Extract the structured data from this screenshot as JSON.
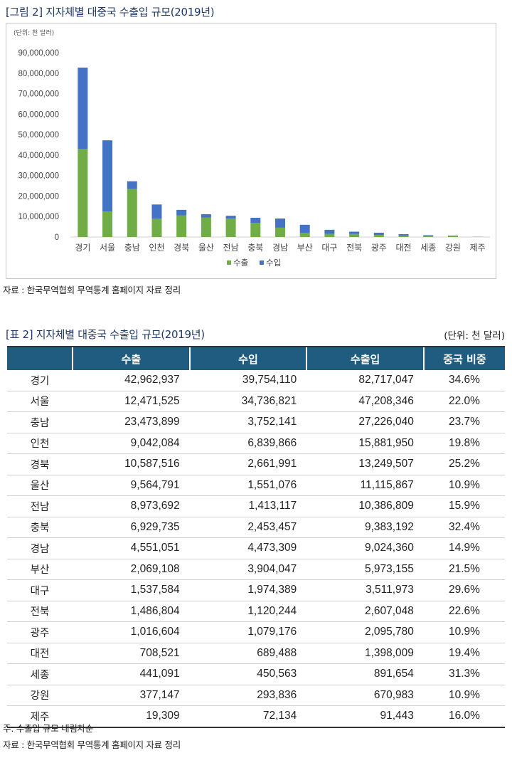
{
  "figure": {
    "title": "[그림 2]  지자체별 대중국 수출입 규모(2019년)",
    "unit_note": "(단위: 천 달러)",
    "source": "자료 : 한국무역협회 무역통계 홈페이지 자료 정리"
  },
  "colors": {
    "export": "#70ad47",
    "import": "#4472c4",
    "header": "#1f5c80"
  },
  "chart_data": {
    "type": "bar",
    "stacked": true,
    "categories": [
      "경기",
      "서울",
      "충남",
      "인천",
      "경북",
      "울산",
      "전남",
      "충북",
      "경남",
      "부산",
      "대구",
      "전북",
      "광주",
      "대전",
      "세종",
      "강원",
      "제주"
    ],
    "series": [
      {
        "name": "수출",
        "values": [
          42962937,
          12471525,
          23473899,
          9042084,
          10587516,
          9564791,
          8973692,
          6929735,
          4551051,
          2069108,
          1537584,
          1486804,
          1016604,
          708521,
          441091,
          377147,
          19309
        ]
      },
      {
        "name": "수입",
        "values": [
          39754110,
          34736821,
          3752141,
          6839866,
          2661991,
          1551076,
          1413117,
          2453457,
          4473309,
          3904047,
          1974389,
          1120244,
          1079176,
          689488,
          450563,
          293836,
          72134
        ]
      }
    ],
    "ylim": [
      0,
      90000000
    ],
    "yticks": [
      "0",
      "10,000,000",
      "20,000,000",
      "30,000,000",
      "40,000,000",
      "50,000,000",
      "60,000,000",
      "70,000,000",
      "80,000,000",
      "90,000,000"
    ],
    "legend_position": "bottom",
    "grid": false
  },
  "table": {
    "title": "[표 2]  지자체별 대중국 수출입 규모(2019년)",
    "unit": "(단위: 천 달러)",
    "headers": [
      "",
      "수출",
      "수입",
      "수출입",
      "중국 비중"
    ],
    "rows": [
      [
        "경기",
        "42,962,937",
        "39,754,110",
        "82,717,047",
        "34.6%"
      ],
      [
        "서울",
        "12,471,525",
        "34,736,821",
        "47,208,346",
        "22.0%"
      ],
      [
        "충남",
        "23,473,899",
        "3,752,141",
        "27,226,040",
        "23.7%"
      ],
      [
        "인천",
        "9,042,084",
        "6,839,866",
        "15,881,950",
        "19.8%"
      ],
      [
        "경북",
        "10,587,516",
        "2,661,991",
        "13,249,507",
        "25.2%"
      ],
      [
        "울산",
        "9,564,791",
        "1,551,076",
        "11,115,867",
        "10.9%"
      ],
      [
        "전남",
        "8,973,692",
        "1,413,117",
        "10,386,809",
        "15.9%"
      ],
      [
        "충북",
        "6,929,735",
        "2,453,457",
        "9,383,192",
        "32.4%"
      ],
      [
        "경남",
        "4,551,051",
        "4,473,309",
        "9,024,360",
        "14.9%"
      ],
      [
        "부산",
        "2,069,108",
        "3,904,047",
        "5,973,155",
        "21.5%"
      ],
      [
        "대구",
        "1,537,584",
        "1,974,389",
        "3,511,973",
        "29.6%"
      ],
      [
        "전북",
        "1,486,804",
        "1,120,244",
        "2,607,048",
        "22.6%"
      ],
      [
        "광주",
        "1,016,604",
        "1,079,176",
        "2,095,780",
        "10.9%"
      ],
      [
        "대전",
        "708,521",
        "689,488",
        "1,398,009",
        "19.4%"
      ],
      [
        "세종",
        "441,091",
        "450,563",
        "891,654",
        "31.3%"
      ],
      [
        "강원",
        "377,147",
        "293,836",
        "670,983",
        "10.9%"
      ],
      [
        "제주",
        "19,309",
        "72,134",
        "91,443",
        "16.0%"
      ]
    ],
    "note": "주: 수출입 규모 내림차순",
    "source": "자료 : 한국무역협회 무역통계 홈페이지 자료 정리"
  }
}
